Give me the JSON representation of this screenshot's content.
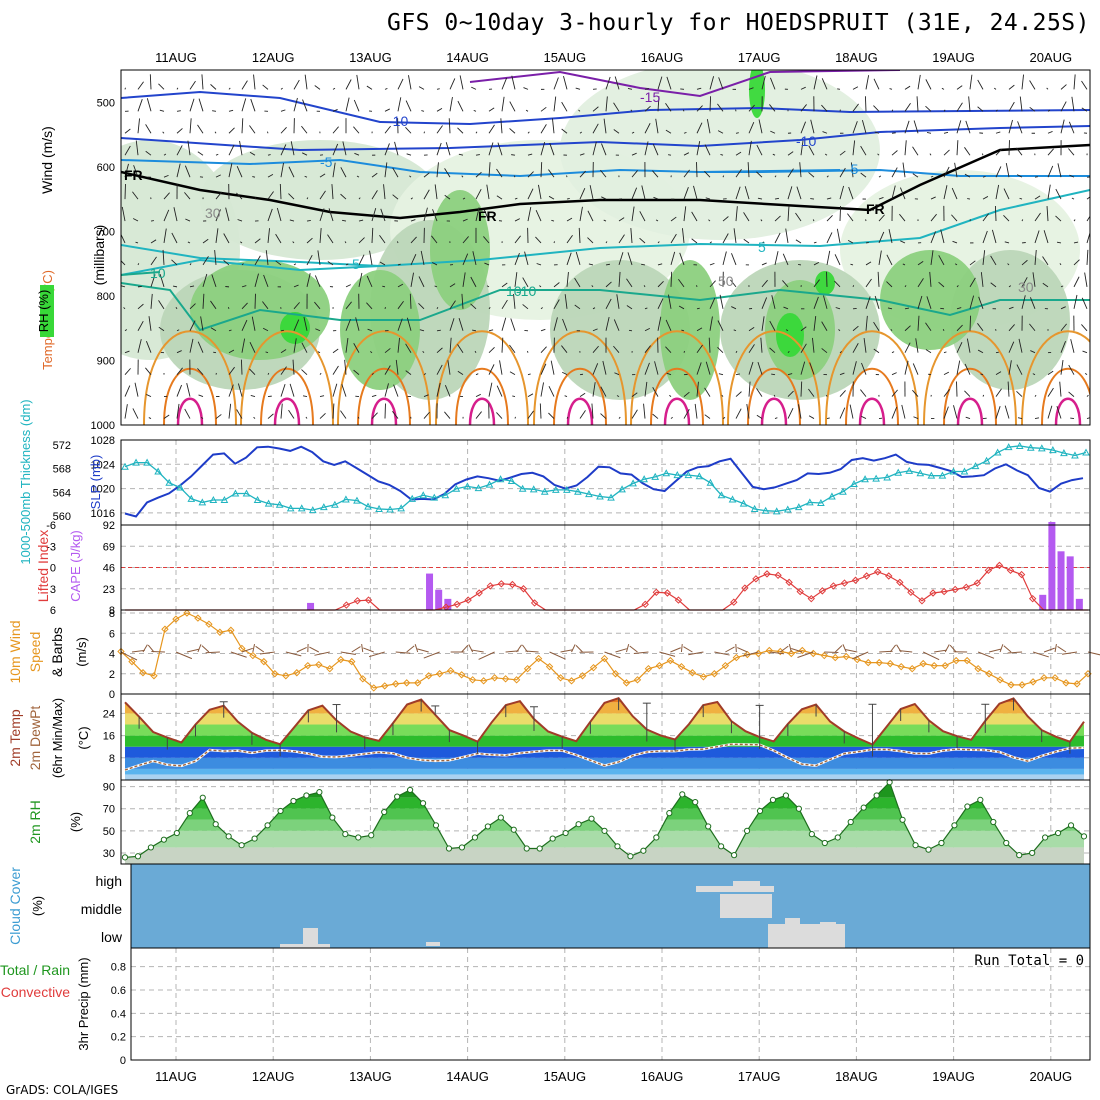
{
  "title": "GFS 0~10day 3-hourly for HOEDSPRUIT (31E, 24.25S)",
  "credit": "GrADS: COLA/IGES",
  "day_labels": [
    "11AUG",
    "12AUG",
    "13AUG",
    "14AUG",
    "15AUG",
    "16AUG",
    "17AUG",
    "18AUG",
    "19AUG",
    "20AUG"
  ],
  "colors": {
    "grid": "#b4b4b4",
    "wind_line": "#1e5adc",
    "thickness": "#20b4c0",
    "slp": "#1e3cc8",
    "cape": "#b45af0",
    "lifted": "#e03c3c",
    "wind10": "#e6961e",
    "temp_line": "#a03c28",
    "dew_line": "#a0643c",
    "rh2m": "#1e961e",
    "cloud_bg": "#6aaad6",
    "cloud": "#dcdcdc"
  },
  "chart_data": [
    {
      "panel": "upper-air",
      "type": "heatmap",
      "axis_labels": {
        "wind": "Wind (m/s)",
        "temperature": "Temperature (°C)",
        "rh": "RH (%)",
        "pressure": "(millibars)"
      },
      "ylim": [
        1000,
        450
      ],
      "y_ticks": [
        500,
        600,
        700,
        800,
        900,
        1000
      ],
      "contour_labels": [
        "-15",
        "-10",
        "-10",
        "-5",
        "-5",
        "5",
        "5",
        "10",
        "-10",
        "10",
        "FR",
        "FR",
        "FR",
        "50",
        "30",
        "30"
      ]
    },
    {
      "panel": "thickness-slp",
      "type": "line",
      "axis_labels": {
        "left": "1000-500mb Thickness (dm)",
        "right": "SLP (mb)"
      },
      "thickness_ticks": [
        560,
        564,
        568,
        572
      ],
      "slp_ticks": [
        1016,
        1020,
        1024,
        1028
      ],
      "series": [
        {
          "name": "SLP (mb)",
          "values": [
            1015.9,
            1015.4,
            1017.7,
            1018.5,
            1019.2,
            1020.5,
            1022.0,
            1023.8,
            1025.6,
            1025.8,
            1024.1,
            1025.1,
            1026.8,
            1026.9,
            1026.6,
            1026.2,
            1026.9,
            1026.0,
            1024.5,
            1023.9,
            1024.5,
            1023.4,
            1022.3,
            1021.2,
            1020.6,
            1019.6,
            1018.2,
            1018.3,
            1018.2,
            1019.1,
            1020.7,
            1021.5,
            1022.0,
            1021.7,
            1021.3,
            1021.8,
            1022.4,
            1022.6,
            1022.0,
            1020.6,
            1020.0,
            1020.5,
            1021.9,
            1023.6,
            1023.5,
            1022.5,
            1022.3,
            1020.9,
            1019.9,
            1019.6,
            1021.2,
            1022.8,
            1023.5,
            1023.7,
            1024.5,
            1024.9,
            1022.6,
            1020.3,
            1019.9,
            1020.2,
            1020.8,
            1021.4,
            1022.5,
            1022.4,
            1022.6,
            1023.2,
            1024.7,
            1025.0,
            1024.6,
            1025.0,
            1025.6,
            1024.4,
            1024.0,
            1023.9,
            1023.4,
            1022.9,
            1021.9,
            1022.0,
            1022.2,
            1023.3,
            1024.0,
            1023.0,
            1022.2,
            1020.1,
            1019.5,
            1020.8,
            1021.4,
            1021.7
          ]
        },
        {
          "name": "Thickness (dm)",
          "values": [
            568.3,
            569.0,
            569.0,
            567.5,
            565.6,
            564.8,
            562.9,
            562.3,
            562.7,
            562.7,
            563.8,
            563.8,
            562.7,
            562.1,
            561.9,
            561.3,
            561.3,
            561.0,
            561.5,
            561.9,
            562.8,
            562.6,
            561.6,
            561.2,
            561.1,
            561.3,
            562.9,
            563.5,
            563.1,
            563.5,
            564.6,
            565.0,
            564.7,
            565.3,
            566.2,
            565.9,
            564.6,
            564.5,
            564.1,
            564.4,
            564.4,
            564.1,
            563.7,
            563.3,
            563.1,
            564.5,
            565.5,
            566.2,
            566.6,
            567.2,
            566.9,
            566.9,
            566.7,
            565.6,
            563.5,
            562.8,
            562.1,
            561.2,
            560.9,
            560.8,
            561.1,
            561.5,
            562.3,
            562.2,
            563.3,
            564.1,
            565.4,
            566.2,
            566.3,
            566.5,
            567.3,
            567.6,
            567.2,
            566.8,
            566.8,
            567.5,
            567.5,
            568.4,
            569.3,
            570.7,
            571.6,
            571.8,
            571.5,
            571.4,
            571.1,
            570.6,
            570.2,
            570.7
          ]
        }
      ]
    },
    {
      "panel": "cape-li",
      "type": "bar",
      "axis_labels": {
        "left": "Lifted Index",
        "right": "CAPE (J/kg)"
      },
      "li_ticks": [
        "-6",
        "-3",
        "0",
        "3",
        "6"
      ],
      "cape_ticks": [
        "8",
        "23",
        "46",
        "69",
        "92"
      ],
      "series": [
        {
          "name": "CAPE (J/kg)",
          "values": [
            0,
            0,
            0,
            0,
            0,
            0,
            0,
            0,
            0,
            0,
            0,
            0,
            0,
            0,
            0,
            0,
            0,
            0,
            0,
            0,
            7,
            0,
            0,
            0,
            0,
            0,
            0,
            0,
            0,
            0,
            0,
            0,
            0,
            36,
            20,
            11,
            0,
            0,
            0,
            0,
            0,
            0,
            0,
            0,
            0,
            0,
            0,
            0,
            0,
            0,
            0,
            0,
            0,
            0,
            0,
            0,
            0,
            0,
            0,
            0,
            0,
            0,
            0,
            0,
            0,
            0,
            0,
            0,
            0,
            0,
            0,
            0,
            0,
            0,
            0,
            0,
            0,
            0,
            0,
            0,
            0,
            0,
            0,
            0,
            0,
            0,
            0,
            0,
            0,
            0,
            0,
            0,
            0,
            0,
            0,
            0,
            0,
            0,
            0,
            0,
            15,
            87,
            58,
            53,
            11,
            0
          ]
        },
        {
          "name": "Lifted Index",
          "values": [
            6,
            6,
            6,
            6,
            6,
            6,
            6,
            6,
            6,
            6,
            6,
            6,
            6,
            6,
            6,
            6,
            6,
            6,
            6,
            6,
            5.3,
            4.7,
            4.6,
            6,
            6,
            6,
            6,
            6,
            6,
            5.6,
            5.2,
            4.6,
            3.6,
            2.6,
            2.3,
            2.4,
            3.0,
            5.0,
            6,
            6,
            6,
            6,
            6,
            6,
            6,
            6,
            6,
            5.2,
            3.5,
            3.6,
            4.6,
            6,
            6,
            6,
            6,
            4.9,
            2.9,
            1.6,
            0.9,
            1.1,
            2.1,
            3.4,
            4.4,
            3.3,
            2.6,
            2.2,
            1.8,
            1.2,
            0.6,
            1.2,
            2.1,
            3.5,
            4.7,
            3.6,
            3.4,
            3.1,
            2.8,
            2.2,
            0.4,
            -0.3,
            0.4,
            1.0,
            4.4,
            6,
            6,
            6,
            6,
            6
          ]
        }
      ]
    },
    {
      "panel": "wind10",
      "type": "line",
      "axis_labels": {
        "left": "10m Wind Speed & Barbs",
        "units": "(m/s)"
      },
      "y_ticks": [
        0,
        2,
        4,
        6,
        8
      ],
      "ylim": [
        0,
        8
      ],
      "series": [
        {
          "name": "10m Wind Speed",
          "values": [
            4.2,
            3.2,
            2.1,
            1.8,
            6.4,
            7.4,
            8.0,
            7.5,
            6.9,
            6.1,
            6.3,
            4.5,
            3.8,
            3.2,
            2.0,
            1.8,
            2.1,
            2.8,
            2.9,
            2.5,
            3.4,
            3.2,
            1.5,
            0.6,
            0.8,
            1.0,
            1.1,
            1.1,
            1.8,
            2.0,
            2.3,
            1.9,
            1.4,
            1.3,
            1.6,
            1.5,
            1.4,
            2.5,
            3.5,
            2.7,
            1.6,
            1.3,
            1.8,
            2.6,
            3.5,
            2.0,
            1.1,
            1.4,
            2.5,
            2.8,
            3.3,
            2.7,
            2.1,
            1.7,
            2.0,
            2.8,
            3.6,
            3.9,
            4.0,
            4.3,
            4.2,
            4.0,
            4.3,
            4.0,
            3.8,
            3.6,
            3.7,
            3.4,
            3.1,
            3.1,
            3.0,
            2.7,
            2.5,
            3.0,
            2.8,
            2.8,
            3.3,
            3.3,
            2.5,
            2.0,
            1.4,
            0.9,
            0.9,
            1.2,
            1.6,
            1.6,
            1.1,
            1.0,
            2.0
          ]
        }
      ]
    },
    {
      "panel": "temp",
      "type": "area",
      "axis_labels": {
        "left": "2m Temp / 2m DewPt (6hr Min/Max)",
        "units": "(°C)"
      },
      "y_ticks": [
        8,
        16,
        24
      ],
      "ylim": [
        0,
        30
      ],
      "series": [
        {
          "name": "2m Temp",
          "values": [
            28.0,
            22.8,
            17.3,
            15.3,
            13.5,
            20.0,
            25.3,
            26.8,
            21.0,
            17.0,
            14.5,
            12.9,
            19.0,
            25.1,
            26.8,
            21.5,
            17.5,
            15.4,
            14.1,
            20.5,
            27.2,
            29.0,
            23.5,
            18.0,
            16.0,
            13.8,
            20.8,
            27.0,
            28.4,
            22.0,
            17.5,
            15.6,
            14.0,
            21.0,
            27.8,
            29.5,
            23.0,
            18.2,
            16.0,
            14.6,
            20.2,
            27.0,
            28.1,
            21.2,
            17.6,
            15.5,
            13.9,
            20.2,
            25.5,
            27.2,
            21.1,
            17.5,
            15.0,
            12.8,
            19.2,
            25.6,
            27.4,
            21.5,
            17.6,
            15.8,
            14.5,
            21.3,
            27.5,
            29.4,
            23.0,
            18.0,
            15.6,
            13.8,
            21.0
          ]
        },
        {
          "name": "2m DewPt",
          "values": [
            3.6,
            5.3,
            6.8,
            5.5,
            5.1,
            6.8,
            10.8,
            10.4,
            10.6,
            9.8,
            10.6,
            10.7,
            10.3,
            9.5,
            8.4,
            8.3,
            8.8,
            9.4,
            10.0,
            9.6,
            8.0,
            7.2,
            6.9,
            7.1,
            8.3,
            9.5,
            9.1,
            8.9,
            9.7,
            10.2,
            10.6,
            10.6,
            9.0,
            7.1,
            5.2,
            6.5,
            8.8,
            10.1,
            10.4,
            10.4,
            11.0,
            11.1,
            12.0,
            12.9,
            12.8,
            12.7,
            10.6,
            8.0,
            5.7,
            5.2,
            7.4,
            9.5,
            10.2,
            11.0,
            11.0,
            10.4,
            9.6,
            9.5,
            10.6,
            11.1,
            10.9,
            10.8,
            10.1,
            8.2,
            6.8,
            8.7,
            10.2,
            11.5,
            11.6
          ]
        },
        {
          "name": "6hr Max",
          "values": [
            null,
            null,
            null,
            null,
            null,
            null,
            null,
            28.2,
            null,
            null,
            null,
            null,
            null,
            null,
            null,
            27.2,
            null,
            null,
            null,
            null,
            null,
            null,
            26.7,
            null,
            null,
            null,
            null,
            null,
            null,
            26.4,
            null,
            null,
            null,
            null,
            null,
            null,
            null,
            27.7,
            null,
            null,
            null,
            null,
            null,
            null,
            null,
            26.9,
            null,
            null,
            null,
            null,
            null,
            null,
            null,
            27.3,
            null,
            null,
            null,
            null,
            null,
            null,
            null,
            27.3,
            null,
            null,
            null,
            null,
            null,
            null,
            null
          ]
        }
      ]
    },
    {
      "panel": "rh2m",
      "type": "area",
      "axis_labels": {
        "left": "2m RH",
        "units": "(%)"
      },
      "y_ticks": [
        30,
        50,
        70,
        90
      ],
      "ylim": [
        20,
        95
      ],
      "series": [
        {
          "name": "2m RH",
          "values": [
            26,
            27,
            35,
            42,
            48,
            66,
            80,
            56,
            45,
            37,
            43,
            55,
            68,
            77,
            82,
            85,
            62,
            47,
            44,
            46,
            67,
            81,
            87,
            75,
            55,
            34,
            35,
            44,
            54,
            62,
            51,
            34,
            34,
            43,
            48,
            56,
            61,
            50,
            36,
            27,
            32,
            44,
            66,
            83,
            76,
            54,
            36,
            28,
            50,
            68,
            78,
            82,
            70,
            47,
            39,
            44,
            58,
            71,
            82,
            94,
            60,
            37,
            33,
            39,
            55,
            72,
            78,
            58,
            39,
            28,
            30,
            44,
            48,
            55,
            45
          ]
        }
      ]
    },
    {
      "panel": "cloud",
      "type": "bar",
      "axis_labels": {
        "left": "Cloud Cover (%)"
      },
      "levels": [
        "high",
        "middle",
        "low"
      ]
    },
    {
      "panel": "precip",
      "type": "bar",
      "axis_labels": {
        "left": "Total / Rain / Convective",
        "right": "3hr Precip (mm)"
      },
      "y_ticks": [
        "0",
        "0.2",
        "0.4",
        "0.6",
        "0.8"
      ],
      "ylim": [
        0,
        0.96
      ],
      "run_total": "Run Total = 0"
    }
  ]
}
